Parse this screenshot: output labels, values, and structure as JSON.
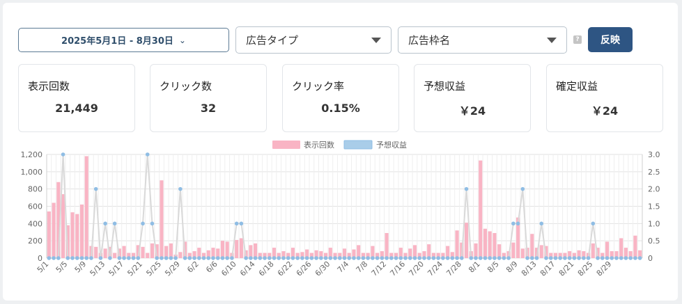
{
  "filters": {
    "date_range": "2025年5月1日 - 8月30日",
    "ad_type_placeholder": "広告タイプ",
    "ad_slot_placeholder": "広告枠名",
    "apply_label": "反映",
    "help_label": "?"
  },
  "stats": [
    {
      "label": "表示回数",
      "value": "21,449"
    },
    {
      "label": "クリック数",
      "value": "32"
    },
    {
      "label": "クリック率",
      "value": "0.15%"
    },
    {
      "label": "予想収益",
      "value": "￥24"
    },
    {
      "label": "確定収益",
      "value": "￥24"
    }
  ],
  "colors": {
    "impressions": "#f9b4c4",
    "revenue_line": "#d9d9d9",
    "revenue_point": "#8fbde4",
    "accent": "#2e5583"
  },
  "chart_data": {
    "type": "bar",
    "legend": [
      "表示回数",
      "予想収益"
    ],
    "legend_position": "top",
    "grid": true,
    "y_left_range": [
      0,
      1200
    ],
    "y_left_ticks": [
      "0",
      "200",
      "400",
      "600",
      "800",
      "1,000",
      "1,200"
    ],
    "y_right_range": [
      0,
      3
    ],
    "y_right_ticks": [
      "0",
      "0.5",
      "1.0",
      "1.5",
      "2.0",
      "2.5",
      "3.0"
    ],
    "x_tick_labels": [
      "5/1",
      "5/5",
      "5/9",
      "5/13",
      "5/17",
      "5/21",
      "5/25",
      "5/29",
      "6/2",
      "6/6",
      "6/10",
      "6/14",
      "6/18",
      "6/22",
      "6/26",
      "6/30",
      "7/4",
      "7/8",
      "7/12",
      "7/16",
      "7/20",
      "7/24",
      "7/28",
      "8/1",
      "8/5",
      "8/9",
      "8/13",
      "8/17",
      "8/21",
      "8/25",
      "8/29"
    ],
    "series": [
      {
        "name": "表示回数",
        "type": "bar",
        "axis": "left",
        "values": [
          540,
          640,
          880,
          740,
          380,
          530,
          510,
          620,
          1180,
          140,
          130,
          60,
          110,
          130,
          60,
          110,
          140,
          60,
          60,
          150,
          130,
          60,
          170,
          160,
          900,
          140,
          170,
          40,
          70,
          190,
          60,
          80,
          120,
          60,
          90,
          120,
          110,
          200,
          190,
          60,
          210,
          230,
          90,
          150,
          170,
          60,
          60,
          60,
          120,
          60,
          80,
          60,
          120,
          60,
          70,
          100,
          60,
          90,
          80,
          60,
          120,
          60,
          60,
          110,
          60,
          100,
          150,
          60,
          60,
          140,
          60,
          80,
          290,
          60,
          60,
          120,
          60,
          110,
          150,
          60,
          80,
          160,
          60,
          60,
          60,
          140,
          70,
          320,
          180,
          410,
          80,
          170,
          1130,
          340,
          310,
          290,
          160,
          60,
          80,
          180,
          470,
          110,
          120,
          280,
          120,
          150,
          140,
          60,
          60,
          60,
          60,
          80,
          60,
          90,
          80,
          60,
          170,
          120,
          60,
          190,
          80,
          80,
          230,
          120,
          80,
          260,
          90
        ]
      },
      {
        "name": "予想収益",
        "type": "line",
        "axis": "right",
        "values": [
          0,
          0,
          0,
          3,
          0,
          0,
          0,
          0,
          0,
          0,
          2,
          0,
          1,
          0,
          1,
          0,
          0,
          0,
          0,
          0,
          1,
          3,
          1,
          0,
          0,
          0,
          0,
          0,
          2,
          0,
          0,
          0,
          0,
          0,
          0,
          0,
          0,
          0,
          0,
          0,
          1,
          1,
          0,
          0,
          0,
          0,
          0,
          0,
          0,
          0,
          0,
          0,
          0,
          0,
          0,
          0,
          0,
          0,
          0,
          0,
          0,
          0,
          0,
          0,
          0,
          0,
          0,
          0,
          0,
          0,
          0,
          0,
          0,
          0,
          0,
          0,
          0,
          0,
          0,
          0,
          0,
          0,
          0,
          0,
          0,
          0,
          0,
          0,
          0,
          2,
          0,
          0,
          0,
          0,
          0,
          0,
          0,
          0,
          0,
          1,
          1,
          2,
          0,
          0,
          0,
          1,
          0,
          0,
          0,
          0,
          0,
          0,
          0,
          0,
          0,
          0,
          1,
          0,
          0,
          0,
          0,
          0,
          0,
          0,
          0,
          0,
          0
        ]
      }
    ]
  }
}
